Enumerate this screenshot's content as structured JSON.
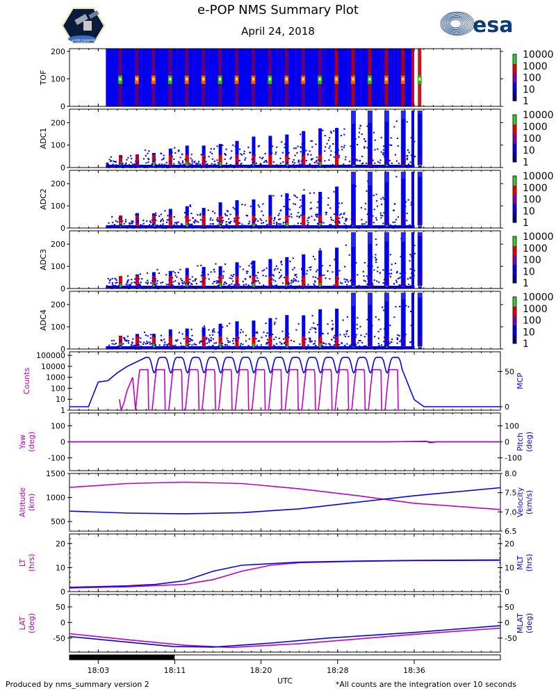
{
  "header": {
    "title": "e-POP NMS Summary Plot",
    "date": "April 24, 2018",
    "esa_logo_text": "esa",
    "mission_patch_text": "e-POP CASSIOPE"
  },
  "footer": {
    "left": "Produced by nms_summary version 2",
    "right": "*All counts are the integration over 10 seconds",
    "xlabel": "UTC"
  },
  "colors": {
    "magenta": "#bf00bf",
    "blue": "#0000ee",
    "esa_blue": "#0b3c7a",
    "spec_bg": "#0000ee",
    "red": "#e00000",
    "green": "#22bb22"
  },
  "chart_data": [
    {
      "type": "heatmap",
      "name": "TOF",
      "ylabel": "TOF",
      "ylim": [
        0,
        210
      ],
      "yticks": [
        0,
        100,
        200
      ],
      "colorbar": {
        "scale": "log",
        "ticks": [
          "1",
          "10",
          "100",
          "1000",
          "10000"
        ]
      },
      "data_start_utc": "18:04",
      "data_end_utc": "18:36",
      "note": "blue background ~10 counts; bright vertical stripes with peaks near 100 at each pulse"
    },
    {
      "type": "heatmap",
      "name": "ADC1",
      "ylabel": "ADC1",
      "ylim": [
        0,
        260
      ],
      "yticks": [
        0,
        100,
        200
      ],
      "colorbar": {
        "scale": "log",
        "ticks": [
          "1",
          "10",
          "100",
          "1000",
          "10000"
        ]
      }
    },
    {
      "type": "heatmap",
      "name": "ADC2",
      "ylabel": "ADC2",
      "ylim": [
        0,
        260
      ],
      "yticks": [
        0,
        100,
        200
      ],
      "colorbar": {
        "scale": "log",
        "ticks": [
          "1",
          "10",
          "100",
          "1000",
          "10000"
        ]
      }
    },
    {
      "type": "heatmap",
      "name": "ADC3",
      "ylabel": "ADC3",
      "ylim": [
        0,
        260
      ],
      "yticks": [
        0,
        100,
        200
      ],
      "colorbar": {
        "scale": "log",
        "ticks": [
          "1",
          "10",
          "100",
          "1000",
          "10000"
        ]
      }
    },
    {
      "type": "heatmap",
      "name": "ADC4",
      "ylabel": "ADC4",
      "ylim": [
        0,
        260
      ],
      "yticks": [
        0,
        100,
        200
      ],
      "colorbar": {
        "scale": "log",
        "ticks": [
          "1",
          "10",
          "100",
          "1000",
          "10000"
        ]
      }
    },
    {
      "type": "line",
      "name": "Counts / MCP",
      "ylabel_left": "Counts",
      "ylabel_right": "MCP",
      "left_scale": "log",
      "left_ticks": [
        "1",
        "10",
        "100",
        "1000",
        "10000",
        "100000"
      ],
      "right_ticks": [
        "0",
        "50"
      ],
      "right_ylim": [
        0,
        75
      ],
      "series": [
        {
          "name": "Counts",
          "color": "magenta",
          "note": "oscillates between ~1 and ~5000 with each pulse"
        },
        {
          "name": "MCP",
          "color": "blue",
          "points": [
            [
              18.0,
              0
            ],
            [
              18.033,
              0
            ],
            [
              18.05,
              35
            ],
            [
              18.067,
              37
            ],
            [
              18.083,
              48
            ],
            [
              18.1,
              57
            ],
            [
              18.133,
              70
            ],
            [
              18.583,
              70
            ],
            [
              18.6,
              10
            ],
            [
              18.617,
              0
            ],
            [
              18.75,
              0
            ]
          ]
        }
      ]
    },
    {
      "type": "line",
      "name": "Yaw / Pitch",
      "ylabel_left": "Yaw\n(deg)",
      "ylabel_right": "Pitch\n(deg)",
      "ylim": [
        -180,
        180
      ],
      "left_ticks": [
        "-100",
        "0",
        "100"
      ],
      "right_ticks": [
        "-100",
        "0",
        "100"
      ],
      "series": [
        {
          "name": "Yaw",
          "color": "magenta",
          "value": 0
        },
        {
          "name": "Pitch",
          "color": "blue",
          "value": 0
        }
      ]
    },
    {
      "type": "line",
      "name": "Altitude / Velocity",
      "ylabel_left": "Altitude\n(km)",
      "ylabel_right": "Velocity\n(km/s)",
      "left_ylim": [
        300,
        1500
      ],
      "left_ticks": [
        "500",
        "1000",
        "1500"
      ],
      "right_ylim": [
        6.5,
        8.0
      ],
      "right_ticks": [
        "6.5",
        "7.0",
        "7.5",
        "8.0"
      ],
      "series": [
        {
          "name": "Altitude",
          "color": "magenta",
          "points": [
            [
              18.0,
              1210
            ],
            [
              18.1,
              1290
            ],
            [
              18.2,
              1320
            ],
            [
              18.3,
              1290
            ],
            [
              18.4,
              1180
            ],
            [
              18.5,
              1040
            ],
            [
              18.6,
              880
            ],
            [
              18.75,
              750
            ]
          ]
        },
        {
          "name": "Velocity",
          "color": "blue",
          "points": [
            [
              18.0,
              7.02
            ],
            [
              18.1,
              6.97
            ],
            [
              18.2,
              6.95
            ],
            [
              18.3,
              6.98
            ],
            [
              18.4,
              7.08
            ],
            [
              18.5,
              7.25
            ],
            [
              18.6,
              7.42
            ],
            [
              18.75,
              7.63
            ]
          ]
        }
      ]
    },
    {
      "type": "line",
      "name": "LT / MLT",
      "ylabel_left": "LT\n(hrs)",
      "ylabel_right": "MLT\n(hrs)",
      "ylim": [
        0,
        24
      ],
      "left_ticks": [
        "0",
        "10",
        "20"
      ],
      "right_ticks": [
        "0",
        "10",
        "20"
      ],
      "series": [
        {
          "name": "LT",
          "color": "magenta",
          "points": [
            [
              18.0,
              1.5
            ],
            [
              18.1,
              2.0
            ],
            [
              18.2,
              3.0
            ],
            [
              18.25,
              5.0
            ],
            [
              18.3,
              8.5
            ],
            [
              18.35,
              11.0
            ],
            [
              18.4,
              12.0
            ],
            [
              18.5,
              12.6
            ],
            [
              18.6,
              12.9
            ],
            [
              18.75,
              13.0
            ]
          ]
        },
        {
          "name": "MLT",
          "color": "blue",
          "points": [
            [
              18.0,
              1.8
            ],
            [
              18.1,
              2.4
            ],
            [
              18.15,
              3.0
            ],
            [
              18.2,
              4.5
            ],
            [
              18.25,
              8.5
            ],
            [
              18.3,
              11.0
            ],
            [
              18.4,
              12.3
            ],
            [
              18.5,
              12.7
            ],
            [
              18.6,
              13.0
            ],
            [
              18.75,
              13.2
            ]
          ]
        }
      ]
    },
    {
      "type": "line",
      "name": "LAT / MLAT",
      "ylabel_left": "LAT\n(deg)",
      "ylabel_right": "MLAT\n(deg)",
      "ylim": [
        -95,
        90
      ],
      "left_ticks": [
        "-50",
        "0",
        "50"
      ],
      "right_ticks": [
        "-50",
        "0",
        "50"
      ],
      "series": [
        {
          "name": "LAT",
          "color": "magenta",
          "points": [
            [
              18.0,
              -36
            ],
            [
              18.1,
              -55
            ],
            [
              18.2,
              -73
            ],
            [
              18.28,
              -80
            ],
            [
              18.4,
              -68
            ],
            [
              18.5,
              -53
            ],
            [
              18.6,
              -38
            ],
            [
              18.75,
              -18
            ]
          ]
        },
        {
          "name": "MLAT",
          "color": "blue",
          "points": [
            [
              18.0,
              -45
            ],
            [
              18.1,
              -63
            ],
            [
              18.18,
              -77
            ],
            [
              18.25,
              -79
            ],
            [
              18.35,
              -66
            ],
            [
              18.45,
              -50
            ],
            [
              18.6,
              -32
            ],
            [
              18.75,
              -10
            ]
          ]
        }
      ]
    }
  ],
  "time_axis": {
    "range_hours": [
      18.0,
      18.75
    ],
    "labels": [
      "18:03",
      "18:11",
      "18:20",
      "18:28",
      "18:36"
    ],
    "label_hours": [
      18.05,
      18.1833,
      18.3333,
      18.4667,
      18.6
    ],
    "coverage_bar_range_hours": [
      18.0,
      18.183
    ]
  }
}
